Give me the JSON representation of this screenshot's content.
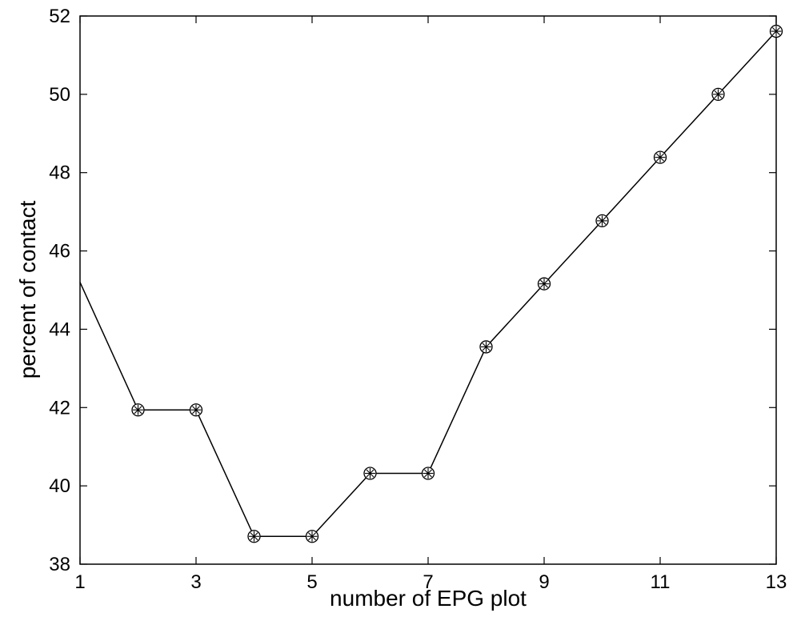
{
  "chart_data": {
    "type": "line",
    "title": "",
    "xlabel": "number of EPG plot",
    "ylabel": "percent of contact",
    "xlim": [
      1,
      13
    ],
    "ylim": [
      38,
      52
    ],
    "xticks": [
      1,
      3,
      5,
      7,
      9,
      11,
      13
    ],
    "yticks": [
      38,
      40,
      42,
      44,
      46,
      48,
      50,
      52
    ],
    "grid": false,
    "series": [
      {
        "x": [
          1,
          2,
          3,
          4,
          5,
          6,
          7,
          8,
          9,
          10,
          11,
          12,
          13
        ],
        "y": [
          45.2,
          41.94,
          41.94,
          38.71,
          38.71,
          40.32,
          40.32,
          43.55,
          45.16,
          46.77,
          48.39,
          50.0,
          51.61
        ],
        "marker": "circle-star",
        "marker_start_index": 1,
        "color": "#000000"
      }
    ]
  }
}
